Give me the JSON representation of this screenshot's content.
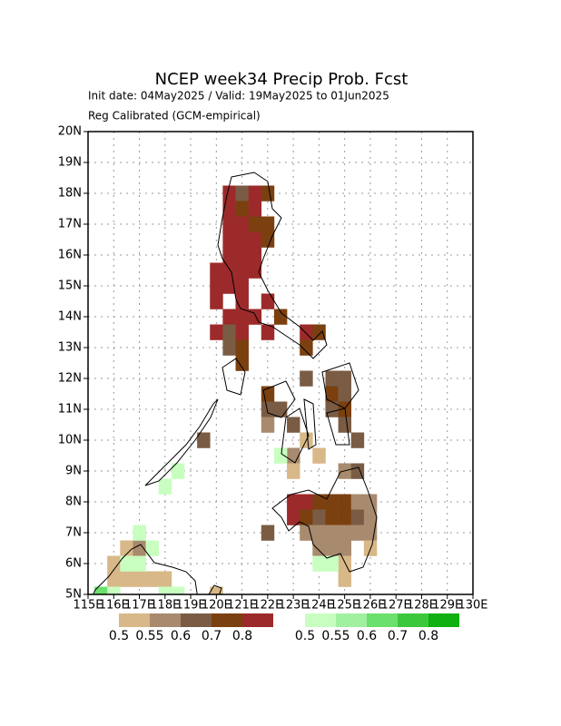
{
  "map": {
    "title": "NCEP week34 Precip Prob. Fcst",
    "subtitle": "Init date: 04May2025 / Valid: 19May2025 to 01Jun2025",
    "subtitle2": "Reg Calibrated (GCM-empirical)",
    "xlim": [
      115,
      130
    ],
    "ylim": [
      5,
      20
    ],
    "xticks": [
      {
        "value": 115,
        "label": "115E"
      },
      {
        "value": 116,
        "label": "116E"
      },
      {
        "value": 117,
        "label": "117E"
      },
      {
        "value": 118,
        "label": "118E"
      },
      {
        "value": 119,
        "label": "119E"
      },
      {
        "value": 120,
        "label": "120E"
      },
      {
        "value": 121,
        "label": "121E"
      },
      {
        "value": 122,
        "label": "122E"
      },
      {
        "value": 123,
        "label": "123E"
      },
      {
        "value": 124,
        "label": "124E"
      },
      {
        "value": 125,
        "label": "125E"
      },
      {
        "value": 126,
        "label": "126E"
      },
      {
        "value": 127,
        "label": "127E"
      },
      {
        "value": 128,
        "label": "128E"
      },
      {
        "value": 129,
        "label": "129E"
      },
      {
        "value": 130,
        "label": "130E"
      }
    ],
    "yticks": [
      {
        "value": 5,
        "label": "5N"
      },
      {
        "value": 6,
        "label": "6N"
      },
      {
        "value": 7,
        "label": "7N"
      },
      {
        "value": 8,
        "label": "8N"
      },
      {
        "value": 9,
        "label": "9N"
      },
      {
        "value": 10,
        "label": "10N"
      },
      {
        "value": 11,
        "label": "11N"
      },
      {
        "value": 12,
        "label": "12N"
      },
      {
        "value": 13,
        "label": "13N"
      },
      {
        "value": 14,
        "label": "14N"
      },
      {
        "value": 15,
        "label": "15N"
      },
      {
        "value": 16,
        "label": "16N"
      },
      {
        "value": 17,
        "label": "17N"
      },
      {
        "value": 18,
        "label": "18N"
      },
      {
        "value": 19,
        "label": "19N"
      },
      {
        "value": 20,
        "label": "20N"
      }
    ],
    "grid": true,
    "cell_size": 0.5,
    "legends": [
      {
        "labels": [
          0.5,
          0.55,
          0.6,
          0.7,
          0.8
        ],
        "colors": [
          "#d8b888",
          "#a88a6e",
          "#7a5c45",
          "#7b4010",
          "#9c2a2a"
        ],
        "cells": [
          [
            120.5,
            18,
            0.8
          ],
          [
            121,
            18,
            0.6
          ],
          [
            121.5,
            18,
            0.8
          ],
          [
            122,
            18,
            0.7
          ],
          [
            120.5,
            17.5,
            0.8
          ],
          [
            121,
            17.5,
            0.7
          ],
          [
            121.5,
            17.5,
            0.8
          ],
          [
            120.5,
            17,
            0.8
          ],
          [
            121,
            17,
            0.8
          ],
          [
            121.5,
            17,
            0.7
          ],
          [
            122,
            17,
            0.7
          ],
          [
            120.5,
            16.5,
            0.8
          ],
          [
            121,
            16.5,
            0.8
          ],
          [
            121.5,
            16.5,
            0.8
          ],
          [
            122,
            16.5,
            0.7
          ],
          [
            120.5,
            16,
            0.8
          ],
          [
            121,
            16,
            0.8
          ],
          [
            121.5,
            16,
            0.8
          ],
          [
            120,
            15.5,
            0.8
          ],
          [
            120.5,
            15.5,
            0.8
          ],
          [
            121,
            15.5,
            0.8
          ],
          [
            121.5,
            15.5,
            0.8
          ],
          [
            120,
            15,
            0.8
          ],
          [
            120.5,
            15,
            0.8
          ],
          [
            121,
            15,
            0.8
          ],
          [
            120,
            14.5,
            0.8
          ],
          [
            121,
            14.5,
            0.8
          ],
          [
            122,
            14.5,
            0.8
          ],
          [
            120.5,
            14,
            0.8
          ],
          [
            121,
            14,
            0.8
          ],
          [
            121.5,
            14,
            0.8
          ],
          [
            122.5,
            14,
            0.7
          ],
          [
            120,
            13.5,
            0.8
          ],
          [
            120.5,
            13.5,
            0.6
          ],
          [
            121,
            13.5,
            0.8
          ],
          [
            122,
            13.5,
            0.8
          ],
          [
            123.5,
            13.5,
            0.8
          ],
          [
            124,
            13.5,
            0.7
          ],
          [
            120.5,
            13,
            0.6
          ],
          [
            121,
            13,
            0.7
          ],
          [
            123.5,
            13,
            0.7
          ],
          [
            121,
            12.5,
            0.7
          ],
          [
            123.5,
            12,
            0.6
          ],
          [
            124.5,
            12,
            0.6
          ],
          [
            125,
            12,
            0.6
          ],
          [
            122,
            11.5,
            0.7
          ],
          [
            124.5,
            11.5,
            0.7
          ],
          [
            125,
            11.5,
            0.6
          ],
          [
            122,
            11,
            0.6
          ],
          [
            122.5,
            11,
            0.6
          ],
          [
            124.5,
            11,
            0.6
          ],
          [
            125,
            11,
            0.7
          ],
          [
            122,
            10.5,
            0.55
          ],
          [
            123,
            10.5,
            0.6
          ],
          [
            125,
            10.5,
            0.6
          ],
          [
            119.5,
            10,
            0.6
          ],
          [
            123.5,
            10,
            0.5
          ],
          [
            125.5,
            10,
            0.6
          ],
          [
            123,
            9.5,
            0.55
          ],
          [
            124,
            9.5,
            0.5
          ],
          [
            123,
            9,
            0.5
          ],
          [
            125,
            9,
            0.55
          ],
          [
            125.5,
            9,
            0.6
          ],
          [
            123,
            8,
            0.8
          ],
          [
            123.5,
            8,
            0.8
          ],
          [
            124,
            8,
            0.7
          ],
          [
            124.5,
            8,
            0.7
          ],
          [
            125,
            8,
            0.7
          ],
          [
            125.5,
            8,
            0.55
          ],
          [
            126,
            8,
            0.55
          ],
          [
            123,
            7.5,
            0.8
          ],
          [
            123.5,
            7.5,
            0.7
          ],
          [
            124,
            7.5,
            0.6
          ],
          [
            124.5,
            7.5,
            0.7
          ],
          [
            125,
            7.5,
            0.7
          ],
          [
            125.5,
            7.5,
            0.6
          ],
          [
            126,
            7.5,
            0.55
          ],
          [
            122,
            7,
            0.6
          ],
          [
            123.5,
            7,
            0.55
          ],
          [
            124,
            7,
            0.55
          ],
          [
            124.5,
            7,
            0.55
          ],
          [
            125,
            7,
            0.55
          ],
          [
            125.5,
            7,
            0.55
          ],
          [
            126,
            7,
            0.55
          ],
          [
            124,
            6.5,
            0.55
          ],
          [
            124.5,
            6.5,
            0.55
          ],
          [
            125,
            6.5,
            0.55
          ],
          [
            126,
            6.5,
            0.5
          ],
          [
            125,
            6,
            0.5
          ],
          [
            125,
            5.5,
            0.5
          ],
          [
            116.5,
            6.5,
            0.5
          ],
          [
            117,
            6.5,
            0.55
          ],
          [
            116,
            6,
            0.5
          ],
          [
            116,
            5.5,
            0.5
          ],
          [
            116.5,
            5.5,
            0.5
          ],
          [
            117,
            5.5,
            0.5
          ],
          [
            117.5,
            5.5,
            0.5
          ],
          [
            118,
            5.5,
            0.5
          ],
          [
            120,
            5,
            0.5
          ]
        ]
      },
      {
        "labels": [
          0.5,
          0.55,
          0.6,
          0.7,
          0.8
        ],
        "colors": [
          "#c8ffc0",
          "#a0f0a0",
          "#6ce06c",
          "#3cc83c",
          "#10b010"
        ],
        "cells": [
          [
            122.5,
            9.5,
            0.5
          ],
          [
            118.5,
            9,
            0.5
          ],
          [
            118,
            8.5,
            0.5
          ],
          [
            117,
            7,
            0.5
          ],
          [
            117.5,
            6.5,
            0.5
          ],
          [
            116.5,
            6,
            0.5
          ],
          [
            117,
            6,
            0.5
          ],
          [
            124,
            6,
            0.5
          ],
          [
            124.5,
            6,
            0.5
          ],
          [
            115.5,
            5,
            0.6
          ],
          [
            116,
            5,
            0.5
          ],
          [
            118,
            5,
            0.5
          ],
          [
            118.5,
            5,
            0.5
          ]
        ]
      }
    ]
  }
}
